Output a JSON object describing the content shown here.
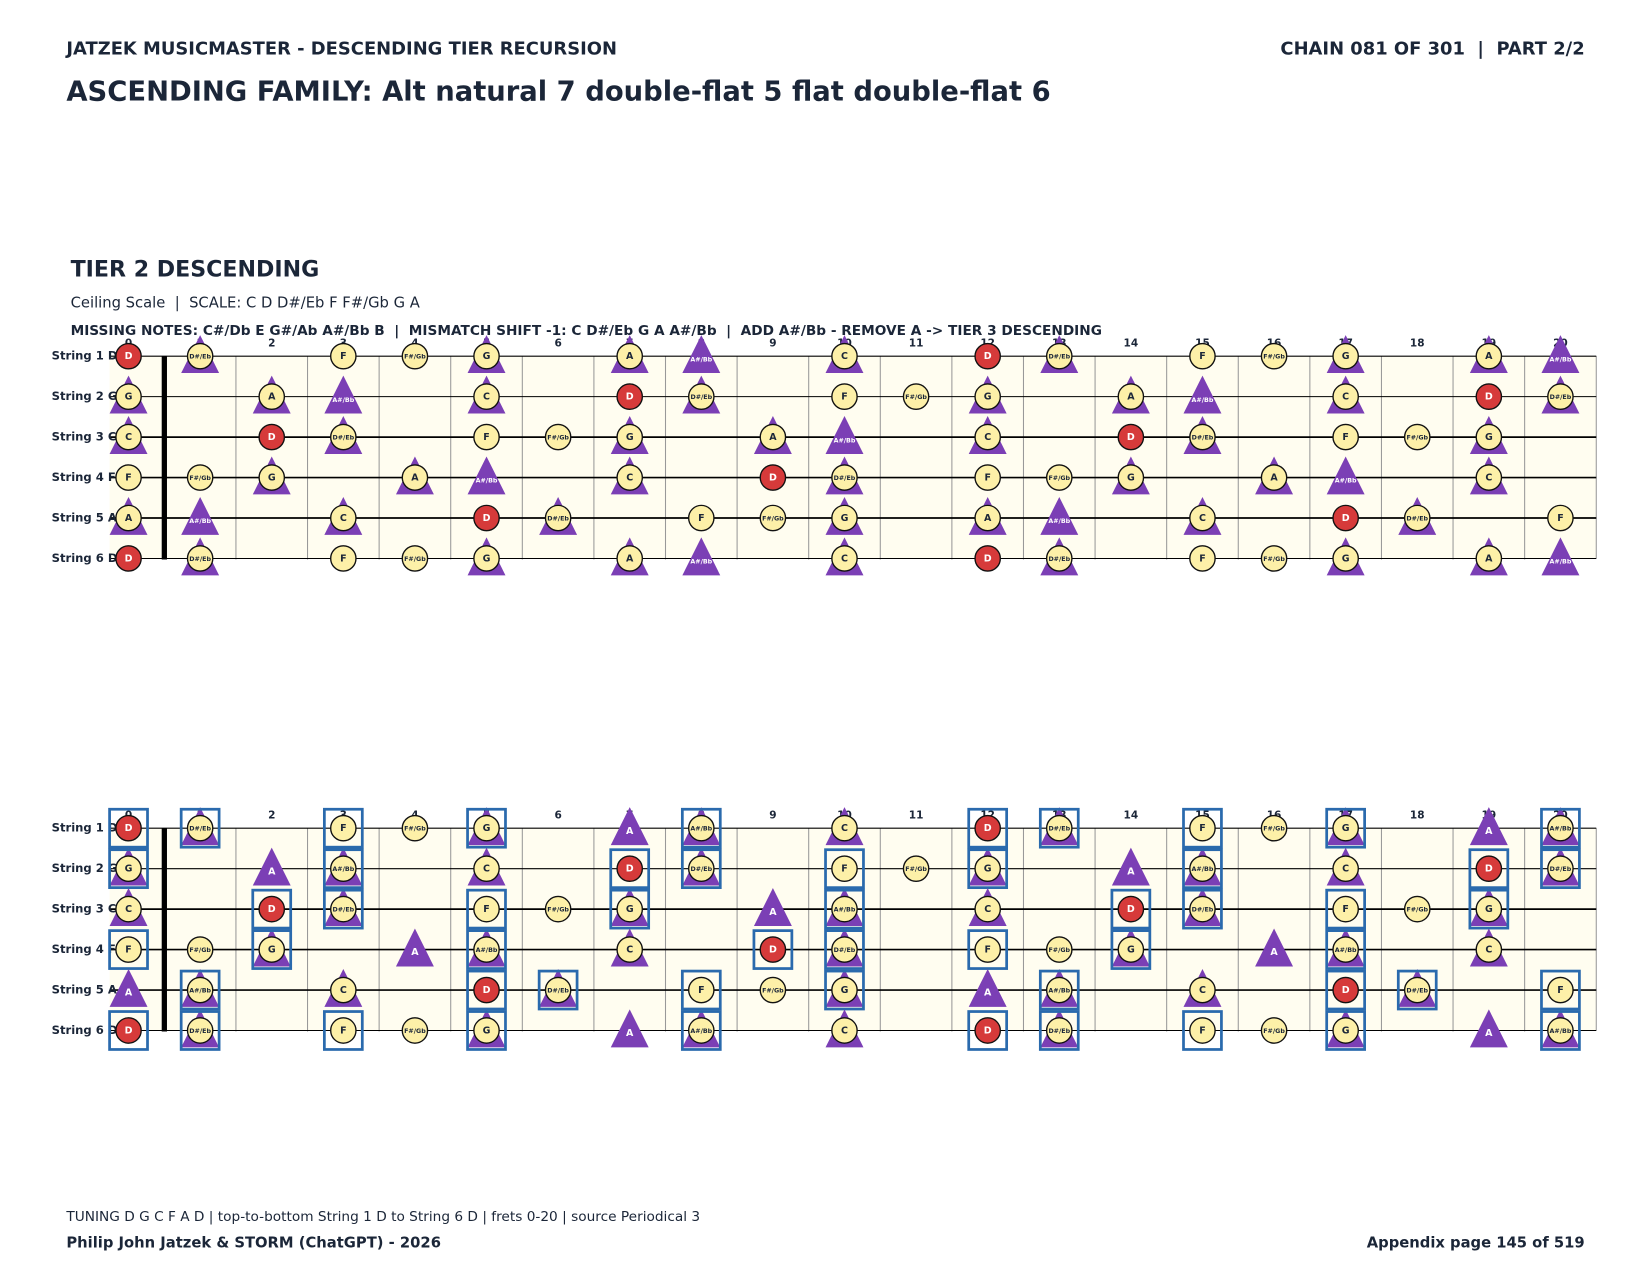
{
  "header": {
    "left": "JATZEK MUSICMASTER - DESCENDING TIER RECURSION",
    "right": "CHAIN 081 OF 301  |  PART 2/2",
    "title": "ASCENDING FAMILY: Alt natural 7 double-flat 5 flat double-flat 6"
  },
  "section": {
    "title": "TIER 2 DESCENDING",
    "subtitle": "Ceiling Scale  |  SCALE: C D D#/Eb F F#/Gb G A",
    "note": "MISSING NOTES: C#/Db E G#/Ab A#/Bb B  |  MISMATCH SHIFT -1: C D#/Eb G A A#/Bb  |  ADD A#/Bb - REMOVE A -> TIER 3 DESCENDING"
  },
  "frets": [
    0,
    1,
    2,
    3,
    4,
    5,
    6,
    7,
    8,
    9,
    10,
    11,
    12,
    13,
    14,
    15,
    16,
    17,
    18,
    19,
    20
  ],
  "root_note": "D",
  "strings": [
    {
      "label": "String 1 D",
      "notes": [
        "D",
        "D#/Eb",
        null,
        "F",
        "F#/Gb",
        "G",
        null,
        "A",
        "A#/Bb",
        null,
        "C",
        null,
        "D",
        "D#/Eb",
        null,
        "F",
        "F#/Gb",
        "G",
        null,
        "A",
        "A#/Bb"
      ]
    },
    {
      "label": "String 2 G",
      "notes": [
        "G",
        null,
        "A",
        "A#/Bb",
        null,
        "C",
        null,
        "D",
        "D#/Eb",
        null,
        "F",
        "F#/Gb",
        "G",
        null,
        "A",
        "A#/Bb",
        null,
        "C",
        null,
        "D",
        "D#/Eb"
      ]
    },
    {
      "label": "String 3 C",
      "notes": [
        "C",
        null,
        "D",
        "D#/Eb",
        null,
        "F",
        "F#/Gb",
        "G",
        null,
        "A",
        "A#/Bb",
        null,
        "C",
        null,
        "D",
        "D#/Eb",
        null,
        "F",
        "F#/Gb",
        "G",
        null
      ]
    },
    {
      "label": "String 4 F",
      "notes": [
        "F",
        "F#/Gb",
        "G",
        null,
        "A",
        "A#/Bb",
        null,
        "C",
        null,
        "D",
        "D#/Eb",
        null,
        "F",
        "F#/Gb",
        "G",
        null,
        "A",
        "A#/Bb",
        null,
        "C",
        null
      ]
    },
    {
      "label": "String 5 A",
      "notes": [
        "A",
        "A#/Bb",
        null,
        "C",
        null,
        "D",
        "D#/Eb",
        null,
        "F",
        "F#/Gb",
        "G",
        null,
        "A",
        "A#/Bb",
        null,
        "C",
        null,
        "D",
        "D#/Eb",
        null,
        "F"
      ]
    },
    {
      "label": "String 6 D",
      "notes": [
        "D",
        "D#/Eb",
        null,
        "F",
        "F#/Gb",
        "G",
        null,
        "A",
        "A#/Bb",
        null,
        "C",
        null,
        "D",
        "D#/Eb",
        null,
        "F",
        "F#/Gb",
        "G",
        null,
        "A",
        "A#/Bb"
      ]
    }
  ],
  "fretboards": [
    {
      "circles": [
        "C",
        "D",
        "D#/Eb",
        "F",
        "F#/Gb",
        "G",
        "A"
      ],
      "triangles": [
        "C",
        "D#/Eb",
        "G",
        "A",
        "A#/Bb"
      ],
      "boxes": []
    },
    {
      "circles": [
        "C",
        "D",
        "D#/Eb",
        "F",
        "F#/Gb",
        "G",
        "A#/Bb"
      ],
      "triangles": [
        "C",
        "D#/Eb",
        "G",
        "A",
        "A#/Bb"
      ],
      "boxes": [
        "D",
        "D#/Eb",
        "F",
        "G",
        "A#/Bb"
      ]
    }
  ],
  "footer": {
    "source": "TUNING D G C F A D | top-to-bottom String 1 D to String 6 D | frets 0-20 | source Periodical 3",
    "credit": "Philip John Jatzek & STORM (ChatGPT) - 2026",
    "page": "Appendix page 145 of 519"
  }
}
